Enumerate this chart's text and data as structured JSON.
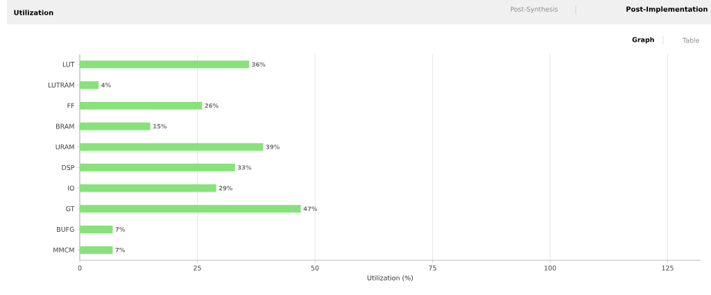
{
  "chart_data": {
    "type": "bar",
    "orientation": "horizontal",
    "title": "Utilization",
    "xlabel": "Utilization (%)",
    "categories": [
      "LUT",
      "LUTRAM",
      "FF",
      "BRAM",
      "URAM",
      "DSP",
      "IO",
      "GT",
      "BUFG",
      "MMCM"
    ],
    "values": [
      36,
      4,
      26,
      15,
      39,
      33,
      29,
      47,
      7,
      7
    ],
    "value_labels": [
      "36%",
      "4%",
      "26%",
      "15%",
      "39%",
      "33%",
      "29%",
      "47%",
      "7%",
      "7%"
    ],
    "color": "#88e27a",
    "xlim": [
      0,
      132
    ],
    "xticks": [
      0,
      25,
      50,
      75,
      100,
      125
    ],
    "grid": "x",
    "annotations": [
      "Post-Synthesis",
      "Post-Implementation",
      "Graph",
      "Table"
    ]
  }
}
